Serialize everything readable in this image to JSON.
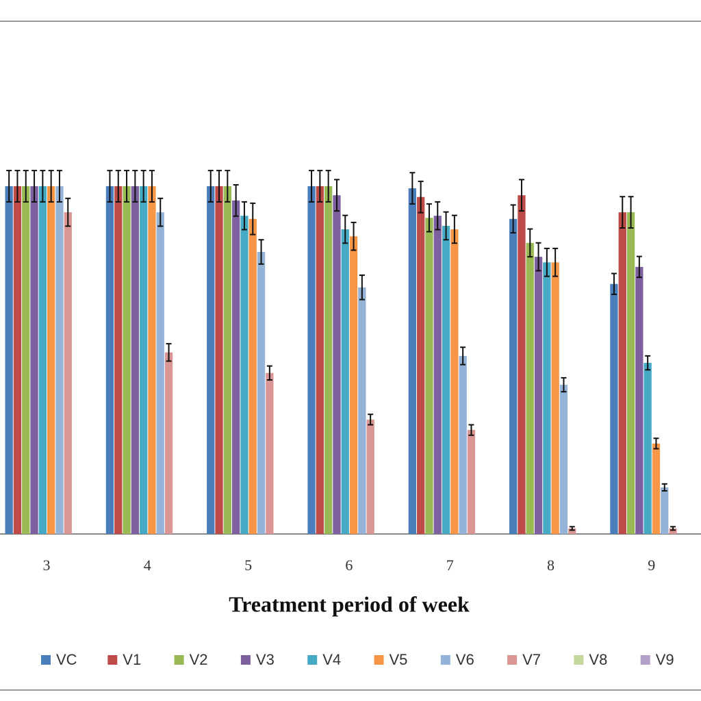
{
  "chart_data": {
    "type": "bar",
    "x_label": "Treatment period of week",
    "categories": [
      "3",
      "4",
      "5",
      "6",
      "7",
      "8",
      "9"
    ],
    "ylim": [
      0,
      100
    ],
    "series": [
      {
        "name": "VC",
        "color": "#4a7ebb",
        "values": [
          100,
          100,
          100,
          100,
          99.4,
          90.6,
          71.9
        ],
        "errors": [
          4.5,
          4.5,
          4.5,
          4.5,
          4.5,
          4,
          3
        ]
      },
      {
        "name": "V1",
        "color": "#be4b48",
        "values": [
          100,
          100,
          100,
          100,
          96.9,
          97.4,
          92.5
        ],
        "errors": [
          4.5,
          4.5,
          4.5,
          4.5,
          4.5,
          4.5,
          4.5
        ]
      },
      {
        "name": "V2",
        "color": "#98b954",
        "values": [
          100,
          100,
          100,
          100,
          90.9,
          83.7,
          92.5
        ],
        "errors": [
          4.5,
          4.5,
          4.5,
          4.5,
          4,
          4,
          4.5
        ]
      },
      {
        "name": "V3",
        "color": "#7d60a0",
        "values": [
          100,
          100,
          95.9,
          97.4,
          91.5,
          79.7,
          76.8
        ],
        "errors": [
          4.5,
          4.5,
          4.5,
          4.5,
          4,
          4,
          3
        ]
      },
      {
        "name": "V4",
        "color": "#46aac5",
        "values": [
          100,
          100,
          91.5,
          87.6,
          88.6,
          78.1,
          49.2
        ],
        "errors": [
          4.5,
          4.5,
          4,
          4,
          4,
          4,
          2
        ]
      },
      {
        "name": "V5",
        "color": "#f79646",
        "values": [
          100,
          100,
          90.6,
          85.6,
          87.6,
          78.1,
          26
        ],
        "errors": [
          4.5,
          4.5,
          4.5,
          4,
          4,
          4,
          1.5
        ]
      },
      {
        "name": "V6",
        "color": "#95b3d7",
        "values": [
          100,
          92.5,
          81.1,
          70.9,
          51.2,
          42.9,
          13.4
        ],
        "errors": [
          4.5,
          4,
          3.5,
          3.5,
          2.5,
          2,
          1
        ]
      },
      {
        "name": "V7",
        "color": "#d99694",
        "values": [
          92.5,
          52.2,
          46.3,
          32.9,
          29.9,
          1.6,
          1.6
        ],
        "errors": [
          4,
          2.5,
          2,
          1.5,
          1.5,
          0.5,
          0.5
        ]
      },
      {
        "name": "V8",
        "color": "#c3d69b",
        "values": [
          null,
          null,
          null,
          null,
          null,
          null,
          null
        ]
      },
      {
        "name": "V9",
        "color": "#b3a2c7",
        "values": [
          null,
          null,
          null,
          null,
          null,
          null,
          null
        ]
      }
    ]
  }
}
